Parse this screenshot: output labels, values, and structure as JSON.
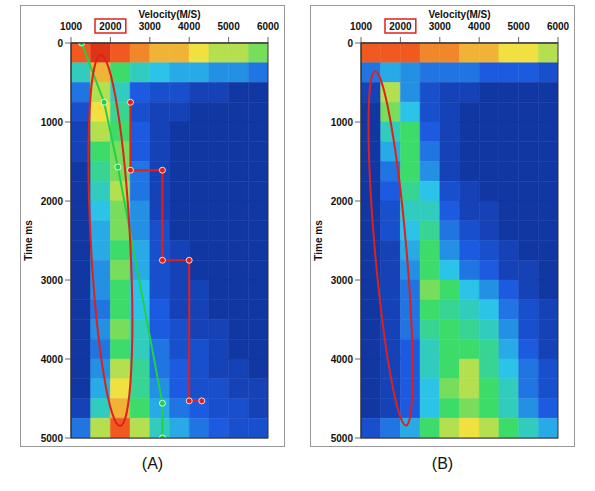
{
  "chart_data": [
    {
      "type": "heatmap",
      "label": "(A)",
      "x_label": "Velocity(M/S)",
      "y_label": "Time ms",
      "xlim": [
        1000,
        6000
      ],
      "xticks": [
        1000,
        2000,
        3000,
        4000,
        5000,
        6000
      ],
      "ylim": [
        0,
        5000
      ],
      "yticks": [
        0,
        1000,
        2000,
        3000,
        4000,
        5000
      ],
      "grid": true,
      "x_bins": [
        1000,
        1500,
        2000,
        2500,
        3000,
        3500,
        4000,
        4500,
        5000,
        5500,
        6000
      ],
      "y_bins": [
        0,
        250,
        500,
        750,
        1000,
        1250,
        1500,
        1750,
        2000,
        2250,
        2500,
        2750,
        3000,
        3250,
        3500,
        3750,
        4000,
        4250,
        4500,
        4750,
        5000
      ],
      "zlim": [
        0,
        1
      ],
      "cells": [
        [
          0.9,
          0.95,
          0.9,
          0.85,
          0.8,
          0.8,
          0.75,
          0.7,
          0.7,
          0.65
        ],
        [
          0.5,
          0.8,
          0.6,
          0.5,
          0.45,
          0.4,
          0.4,
          0.35,
          0.35,
          0.3
        ],
        [
          0.3,
          0.7,
          0.5,
          0.25,
          0.2,
          0.2,
          0.15,
          0.15,
          0.1,
          0.1
        ],
        [
          0.2,
          0.75,
          0.55,
          0.2,
          0.15,
          0.15,
          0.1,
          0.1,
          0.1,
          0.1
        ],
        [
          0.15,
          0.7,
          0.6,
          0.25,
          0.15,
          0.1,
          0.1,
          0.1,
          0.1,
          0.1
        ],
        [
          0.15,
          0.6,
          0.65,
          0.25,
          0.15,
          0.1,
          0.1,
          0.1,
          0.1,
          0.1
        ],
        [
          0.1,
          0.55,
          0.65,
          0.3,
          0.15,
          0.1,
          0.1,
          0.1,
          0.1,
          0.1
        ],
        [
          0.1,
          0.5,
          0.7,
          0.3,
          0.15,
          0.1,
          0.1,
          0.1,
          0.1,
          0.1
        ],
        [
          0.1,
          0.45,
          0.65,
          0.35,
          0.15,
          0.1,
          0.1,
          0.1,
          0.1,
          0.1
        ],
        [
          0.1,
          0.4,
          0.65,
          0.35,
          0.2,
          0.1,
          0.1,
          0.1,
          0.1,
          0.1
        ],
        [
          0.1,
          0.4,
          0.6,
          0.4,
          0.2,
          0.15,
          0.1,
          0.1,
          0.1,
          0.1
        ],
        [
          0.1,
          0.35,
          0.65,
          0.4,
          0.2,
          0.15,
          0.1,
          0.1,
          0.1,
          0.1
        ],
        [
          0.1,
          0.35,
          0.6,
          0.45,
          0.2,
          0.15,
          0.15,
          0.1,
          0.1,
          0.1
        ],
        [
          0.1,
          0.3,
          0.6,
          0.45,
          0.25,
          0.15,
          0.15,
          0.1,
          0.1,
          0.1
        ],
        [
          0.1,
          0.35,
          0.65,
          0.5,
          0.25,
          0.2,
          0.15,
          0.15,
          0.1,
          0.1
        ],
        [
          0.1,
          0.3,
          0.6,
          0.5,
          0.3,
          0.2,
          0.2,
          0.15,
          0.1,
          0.1
        ],
        [
          0.1,
          0.35,
          0.7,
          0.55,
          0.3,
          0.25,
          0.2,
          0.15,
          0.15,
          0.1
        ],
        [
          0.1,
          0.4,
          0.75,
          0.55,
          0.35,
          0.25,
          0.2,
          0.2,
          0.15,
          0.15
        ],
        [
          0.15,
          0.5,
          0.8,
          0.6,
          0.4,
          0.3,
          0.25,
          0.2,
          0.2,
          0.15
        ],
        [
          0.3,
          0.7,
          0.9,
          0.7,
          0.5,
          0.4,
          0.3,
          0.25,
          0.2,
          0.2
        ]
      ],
      "series": [
        {
          "type": "line",
          "color": "#22d04a",
          "marker": "circle",
          "x": [
            1270,
            1840,
            2190,
            3320,
            3320
          ],
          "values": [
            0,
            750,
            1570,
            4560,
            5000
          ]
        },
        {
          "type": "line",
          "color": "#e0201c",
          "marker": "circle",
          "x": [
            2510,
            2510,
            3320,
            3320,
            4000,
            4000,
            4320
          ],
          "values": [
            750,
            1610,
            1610,
            2750,
            2750,
            4530,
            4530
          ]
        }
      ]
    },
    {
      "type": "heatmap",
      "label": "(B)",
      "x_label": "Velocity(M/S)",
      "y_label": "Time ms",
      "xlim": [
        1000,
        6000
      ],
      "xticks": [
        1000,
        2000,
        3000,
        4000,
        5000,
        6000
      ],
      "ylim": [
        0,
        5000
      ],
      "yticks": [
        0,
        1000,
        2000,
        3000,
        4000,
        5000
      ],
      "grid": true,
      "x_bins": [
        1000,
        1500,
        2000,
        2500,
        3000,
        3500,
        4000,
        4500,
        5000,
        5500,
        6000
      ],
      "y_bins": [
        0,
        250,
        500,
        750,
        1000,
        1250,
        1500,
        1750,
        2000,
        2250,
        2500,
        2750,
        3000,
        3250,
        3500,
        3750,
        4000,
        4250,
        4500,
        4750,
        5000
      ],
      "zlim": [
        0,
        1
      ],
      "cells": [
        [
          0.9,
          0.9,
          0.9,
          0.85,
          0.85,
          0.8,
          0.8,
          0.75,
          0.75,
          0.7
        ],
        [
          0.3,
          0.4,
          0.35,
          0.3,
          0.3,
          0.3,
          0.25,
          0.25,
          0.25,
          0.2
        ],
        [
          0.15,
          0.7,
          0.35,
          0.2,
          0.15,
          0.15,
          0.1,
          0.1,
          0.1,
          0.1
        ],
        [
          0.1,
          0.65,
          0.45,
          0.2,
          0.15,
          0.1,
          0.1,
          0.1,
          0.1,
          0.1
        ],
        [
          0.1,
          0.5,
          0.6,
          0.25,
          0.15,
          0.1,
          0.1,
          0.1,
          0.1,
          0.1
        ],
        [
          0.1,
          0.4,
          0.6,
          0.3,
          0.15,
          0.1,
          0.1,
          0.1,
          0.1,
          0.1
        ],
        [
          0.1,
          0.3,
          0.6,
          0.35,
          0.15,
          0.1,
          0.1,
          0.1,
          0.1,
          0.1
        ],
        [
          0.1,
          0.25,
          0.55,
          0.45,
          0.2,
          0.15,
          0.1,
          0.1,
          0.1,
          0.1
        ],
        [
          0.1,
          0.2,
          0.5,
          0.5,
          0.25,
          0.15,
          0.15,
          0.1,
          0.1,
          0.1
        ],
        [
          0.1,
          0.2,
          0.45,
          0.55,
          0.3,
          0.2,
          0.15,
          0.1,
          0.1,
          0.1
        ],
        [
          0.1,
          0.15,
          0.4,
          0.6,
          0.35,
          0.25,
          0.2,
          0.15,
          0.1,
          0.1
        ],
        [
          0.1,
          0.15,
          0.35,
          0.6,
          0.45,
          0.3,
          0.25,
          0.15,
          0.15,
          0.1
        ],
        [
          0.1,
          0.15,
          0.3,
          0.65,
          0.6,
          0.45,
          0.35,
          0.25,
          0.15,
          0.1
        ],
        [
          0.1,
          0.15,
          0.3,
          0.6,
          0.55,
          0.5,
          0.45,
          0.3,
          0.2,
          0.15
        ],
        [
          0.1,
          0.15,
          0.3,
          0.55,
          0.6,
          0.55,
          0.5,
          0.35,
          0.2,
          0.15
        ],
        [
          0.1,
          0.15,
          0.25,
          0.5,
          0.6,
          0.6,
          0.55,
          0.4,
          0.25,
          0.15
        ],
        [
          0.1,
          0.15,
          0.25,
          0.5,
          0.6,
          0.7,
          0.55,
          0.45,
          0.3,
          0.2
        ],
        [
          0.1,
          0.15,
          0.25,
          0.45,
          0.65,
          0.7,
          0.6,
          0.5,
          0.3,
          0.2
        ],
        [
          0.1,
          0.15,
          0.25,
          0.45,
          0.6,
          0.65,
          0.6,
          0.5,
          0.35,
          0.25
        ],
        [
          0.2,
          0.3,
          0.4,
          0.6,
          0.7,
          0.75,
          0.7,
          0.6,
          0.5,
          0.4
        ]
      ]
    }
  ]
}
